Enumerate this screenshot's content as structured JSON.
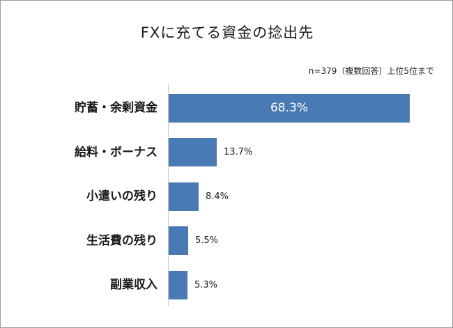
{
  "chart_data": {
    "type": "bar",
    "orientation": "horizontal",
    "title": "FXに充てる資金の捻出先",
    "note": "n=379（複数回答）上位5位まで",
    "categories": [
      "貯蓄・余剰資金",
      "給料・ボーナス",
      "小遣いの残り",
      "生活費の残り",
      "副業収入"
    ],
    "values": [
      68.3,
      13.7,
      8.4,
      5.5,
      5.3
    ],
    "value_labels": [
      "68.3%",
      "13.7%",
      "8.4%",
      "5.5%",
      "5.3%"
    ],
    "unit": "%",
    "xlim": [
      0,
      70
    ],
    "grid": false,
    "legend": "none",
    "bar_color": "#4a7ab4"
  }
}
